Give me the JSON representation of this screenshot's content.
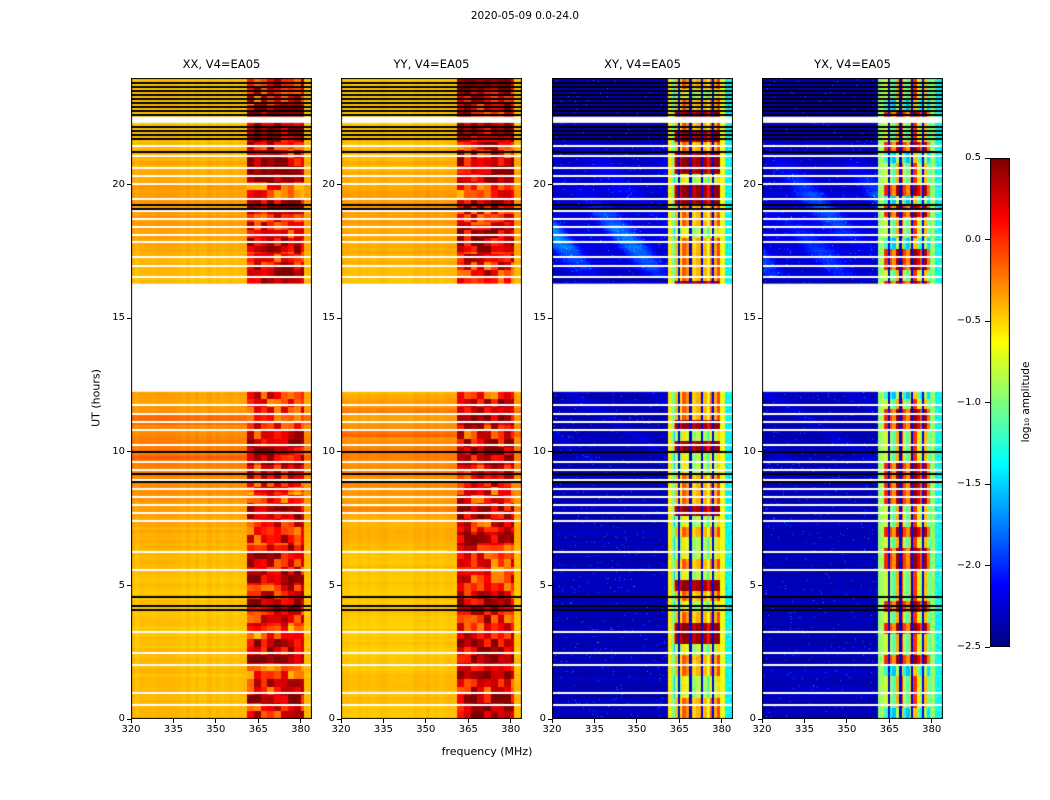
{
  "figure": {
    "title": "2020-05-09 0.0-24.0",
    "xlabel": "frequency (MHz)",
    "ylabel": "UT (hours)"
  },
  "chart_data": {
    "type": "heatmap",
    "title": "2020-05-09 0.0-24.0",
    "xlabel": "frequency (MHz)",
    "ylabel": "UT (hours)",
    "x_range": [
      320,
      384
    ],
    "x_ticks": [
      320,
      335,
      350,
      365,
      380
    ],
    "y_range": [
      0,
      24
    ],
    "y_ticks": [
      0,
      5,
      10,
      15,
      20
    ],
    "colormap": "jet",
    "color_range": [
      -2.5,
      0.5
    ],
    "colorbar": {
      "label": "log₁₀ amplitude",
      "position": "right",
      "ticks": [
        0.5,
        0.0,
        -0.5,
        -1.0,
        -1.5,
        -2.0,
        -2.5
      ],
      "tick_labels": [
        "0.5",
        "0.0",
        "−0.5",
        "−1.0",
        "−1.5",
        "−2.0",
        "−2.5"
      ]
    },
    "panels": [
      {
        "title": "XX, V4=EA05",
        "kind": "parallel",
        "base_level": -0.4
      },
      {
        "title": "YY, V4=EA05",
        "kind": "parallel",
        "base_level": -0.4
      },
      {
        "title": "XY, V4=EA05",
        "kind": "cross",
        "base_level": -2.3
      },
      {
        "title": "YX, V4=EA05",
        "kind": "cross",
        "base_level": -2.3
      }
    ],
    "data_gap_ut": [
      12.25,
      16.3
    ],
    "rfi_band_mhz": [
      361,
      381
    ],
    "flagged_rows_white_ut": [
      0.55,
      1.0,
      2.05,
      2.5,
      3.3,
      5.6,
      6.3,
      7.45,
      7.75,
      8.05,
      8.35,
      8.65,
      9.0,
      9.35,
      9.65,
      10.3,
      10.85,
      11.15,
      11.45,
      11.8,
      16.6,
      17.0,
      17.35,
      17.9,
      18.15,
      18.45,
      18.75,
      19.05,
      19.5,
      20.05,
      20.35,
      20.65,
      21.1,
      21.5
    ],
    "flagged_rows_black_ut": [
      4.1,
      4.25,
      4.6,
      8.9,
      9.2,
      10.05,
      19.15,
      19.3,
      21.25
    ],
    "white_bands_ut": [
      [
        22.32,
        22.55
      ]
    ],
    "dense_flags": {
      "start": 21.75,
      "end": 23.95,
      "step": 0.15
    }
  }
}
